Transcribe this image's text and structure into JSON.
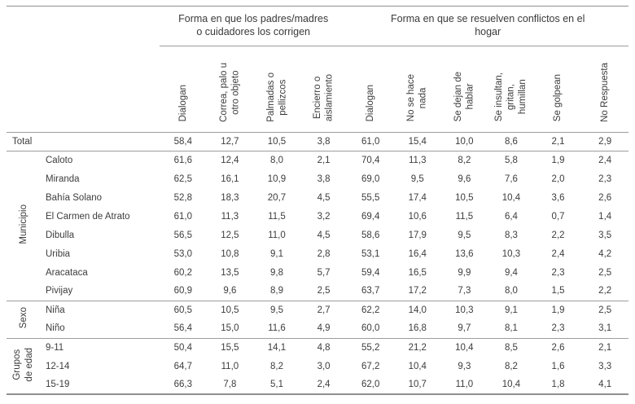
{
  "chart_data": {
    "type": "table",
    "group_headers": [
      {
        "label": "Forma en que los padres/madres\no cuidadores los corrigen",
        "span": 4
      },
      {
        "label": "Forma en que se resuelven conflictos en el\nhogar",
        "span": 6
      }
    ],
    "columns": [
      "Dialogan",
      "Correa, palo u\notro objeto",
      "Palmadas o\npellizcos",
      "Encierro o\naislamiento",
      "Dialogan",
      "No se hace\nnada",
      "Se dejan de\nhablar",
      "Se insultan,\ngritan,\nhumillan",
      "Se golpean",
      "No Respuesta"
    ],
    "sections": [
      {
        "group": "",
        "rows": [
          {
            "label": "Total",
            "values": [
              "58,4",
              "12,7",
              "10,5",
              "3,8",
              "61,0",
              "15,4",
              "10,0",
              "8,6",
              "2,1",
              "2,9"
            ]
          }
        ]
      },
      {
        "group": "Municipio",
        "rows": [
          {
            "label": "Caloto",
            "values": [
              "61,6",
              "12,4",
              "8,0",
              "2,1",
              "70,4",
              "11,3",
              "8,2",
              "5,8",
              "1,9",
              "2,4"
            ]
          },
          {
            "label": "Miranda",
            "values": [
              "62,5",
              "16,1",
              "10,9",
              "3,8",
              "69,0",
              "9,5",
              "9,6",
              "7,6",
              "2,0",
              "2,3"
            ]
          },
          {
            "label": "Bahía Solano",
            "values": [
              "52,8",
              "18,3",
              "20,7",
              "4,5",
              "55,5",
              "17,4",
              "10,5",
              "10,4",
              "3,6",
              "2,6"
            ]
          },
          {
            "label": "El Carmen de Atrato",
            "values": [
              "61,0",
              "11,3",
              "11,5",
              "3,2",
              "69,4",
              "10,6",
              "11,5",
              "6,4",
              "0,7",
              "1,4"
            ]
          },
          {
            "label": "Dibulla",
            "values": [
              "56,5",
              "12,5",
              "11,0",
              "4,5",
              "58,6",
              "17,9",
              "9,5",
              "8,3",
              "2,2",
              "3,5"
            ]
          },
          {
            "label": "Uribia",
            "values": [
              "53,0",
              "10,8",
              "9,1",
              "2,8",
              "53,1",
              "16,4",
              "13,6",
              "10,3",
              "2,4",
              "4,2"
            ]
          },
          {
            "label": "Aracataca",
            "values": [
              "60,2",
              "13,5",
              "9,8",
              "5,7",
              "59,4",
              "16,5",
              "9,9",
              "9,4",
              "2,3",
              "2,5"
            ]
          },
          {
            "label": "Pivijay",
            "values": [
              "60,9",
              "9,6",
              "8,9",
              "2,5",
              "63,7",
              "17,2",
              "7,3",
              "8,0",
              "1,5",
              "2,2"
            ]
          }
        ]
      },
      {
        "group": "Sexo",
        "rows": [
          {
            "label": "Niña",
            "values": [
              "60,5",
              "10,5",
              "9,5",
              "2,7",
              "62,2",
              "14,0",
              "10,3",
              "9,1",
              "1,9",
              "2,5"
            ]
          },
          {
            "label": "Niño",
            "values": [
              "56,4",
              "15,0",
              "11,6",
              "4,9",
              "60,0",
              "16,8",
              "9,7",
              "8,1",
              "2,3",
              "3,1"
            ]
          }
        ]
      },
      {
        "group": "Grupos\nde edad",
        "rows": [
          {
            "label": "9-11",
            "values": [
              "50,4",
              "15,5",
              "14,1",
              "4,8",
              "55,2",
              "21,2",
              "10,4",
              "8,5",
              "2,6",
              "2,1"
            ]
          },
          {
            "label": "12-14",
            "values": [
              "64,7",
              "11,0",
              "8,2",
              "3,0",
              "67,2",
              "10,4",
              "9,3",
              "8,2",
              "1,6",
              "3,3"
            ]
          },
          {
            "label": "15-19",
            "values": [
              "66,3",
              "7,8",
              "5,1",
              "2,4",
              "62,0",
              "10,7",
              "11,0",
              "10,4",
              "1,8",
              "4,1"
            ]
          }
        ]
      }
    ]
  }
}
